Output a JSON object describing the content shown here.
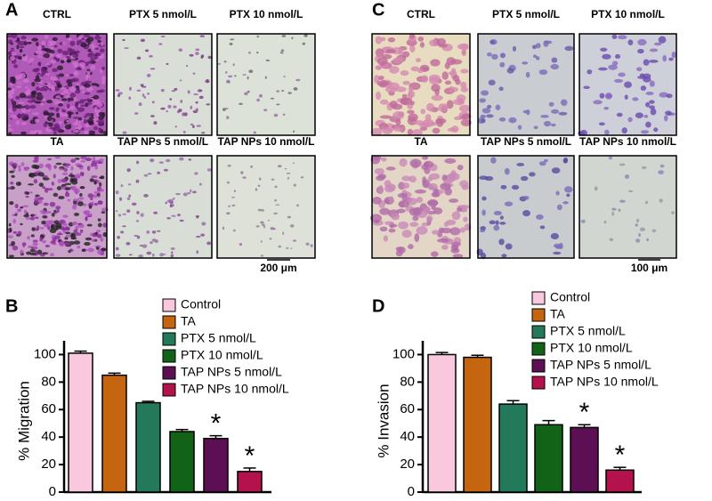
{
  "panels": [
    {
      "letter": "A",
      "images": [
        "CTRL",
        "PTX 5  nmol/L",
        "PTX 10 nmol/L",
        "TA",
        "TAP NPs 5 nmol/L",
        "TAP NPs 10 nmol/L"
      ],
      "scale_bar": "200 μm"
    },
    {
      "letter": "C",
      "images": [
        "CTRL",
        "PTX 5 nmol/L",
        "PTX 10 nmol/L",
        "TA",
        "TAP NPs 5 nmol/L",
        "TAP NPs 10 nmol/L"
      ],
      "scale_bar": "100 μm"
    }
  ],
  "chart_data": [
    {
      "type": "bar",
      "label": "B",
      "ylabel": "% Migration",
      "categories": [
        "Control",
        "TA",
        "PTX 5 nmol/L",
        "PTX 10 nmol/L",
        "TAP NPs 5 nmol/L",
        "TAP NPs 10 nmol/L"
      ],
      "values": [
        101,
        85,
        65,
        44,
        39,
        15
      ],
      "errors": [
        1.5,
        1.5,
        1,
        1.5,
        2,
        2.5
      ],
      "colors": [
        "#f9c8de",
        "#c5650f",
        "#237a5a",
        "#126317",
        "#5c0f52",
        "#b3124c"
      ],
      "significance": [
        null,
        null,
        null,
        null,
        "*",
        "*"
      ],
      "ylim": [
        0,
        110
      ],
      "yticks": [
        0,
        20,
        40,
        60,
        80,
        100
      ]
    },
    {
      "type": "bar",
      "label": "D",
      "ylabel": "% Invasion",
      "categories": [
        "Control",
        "TA",
        "PTX 5 nmol/L",
        "PTX 10 nmol/L",
        "TAP NPs 5 nmol/L",
        "TAP NPs 10 nmol/L"
      ],
      "values": [
        100,
        98,
        64,
        49,
        47,
        16
      ],
      "errors": [
        1.5,
        1.5,
        2.5,
        3,
        2,
        2
      ],
      "colors": [
        "#f9c8de",
        "#c5650f",
        "#237a5a",
        "#126317",
        "#5c0f52",
        "#b3124c"
      ],
      "significance": [
        null,
        null,
        null,
        null,
        "*",
        "*"
      ],
      "ylim": [
        0,
        110
      ],
      "yticks": [
        0,
        20,
        40,
        60,
        80,
        100
      ]
    }
  ]
}
